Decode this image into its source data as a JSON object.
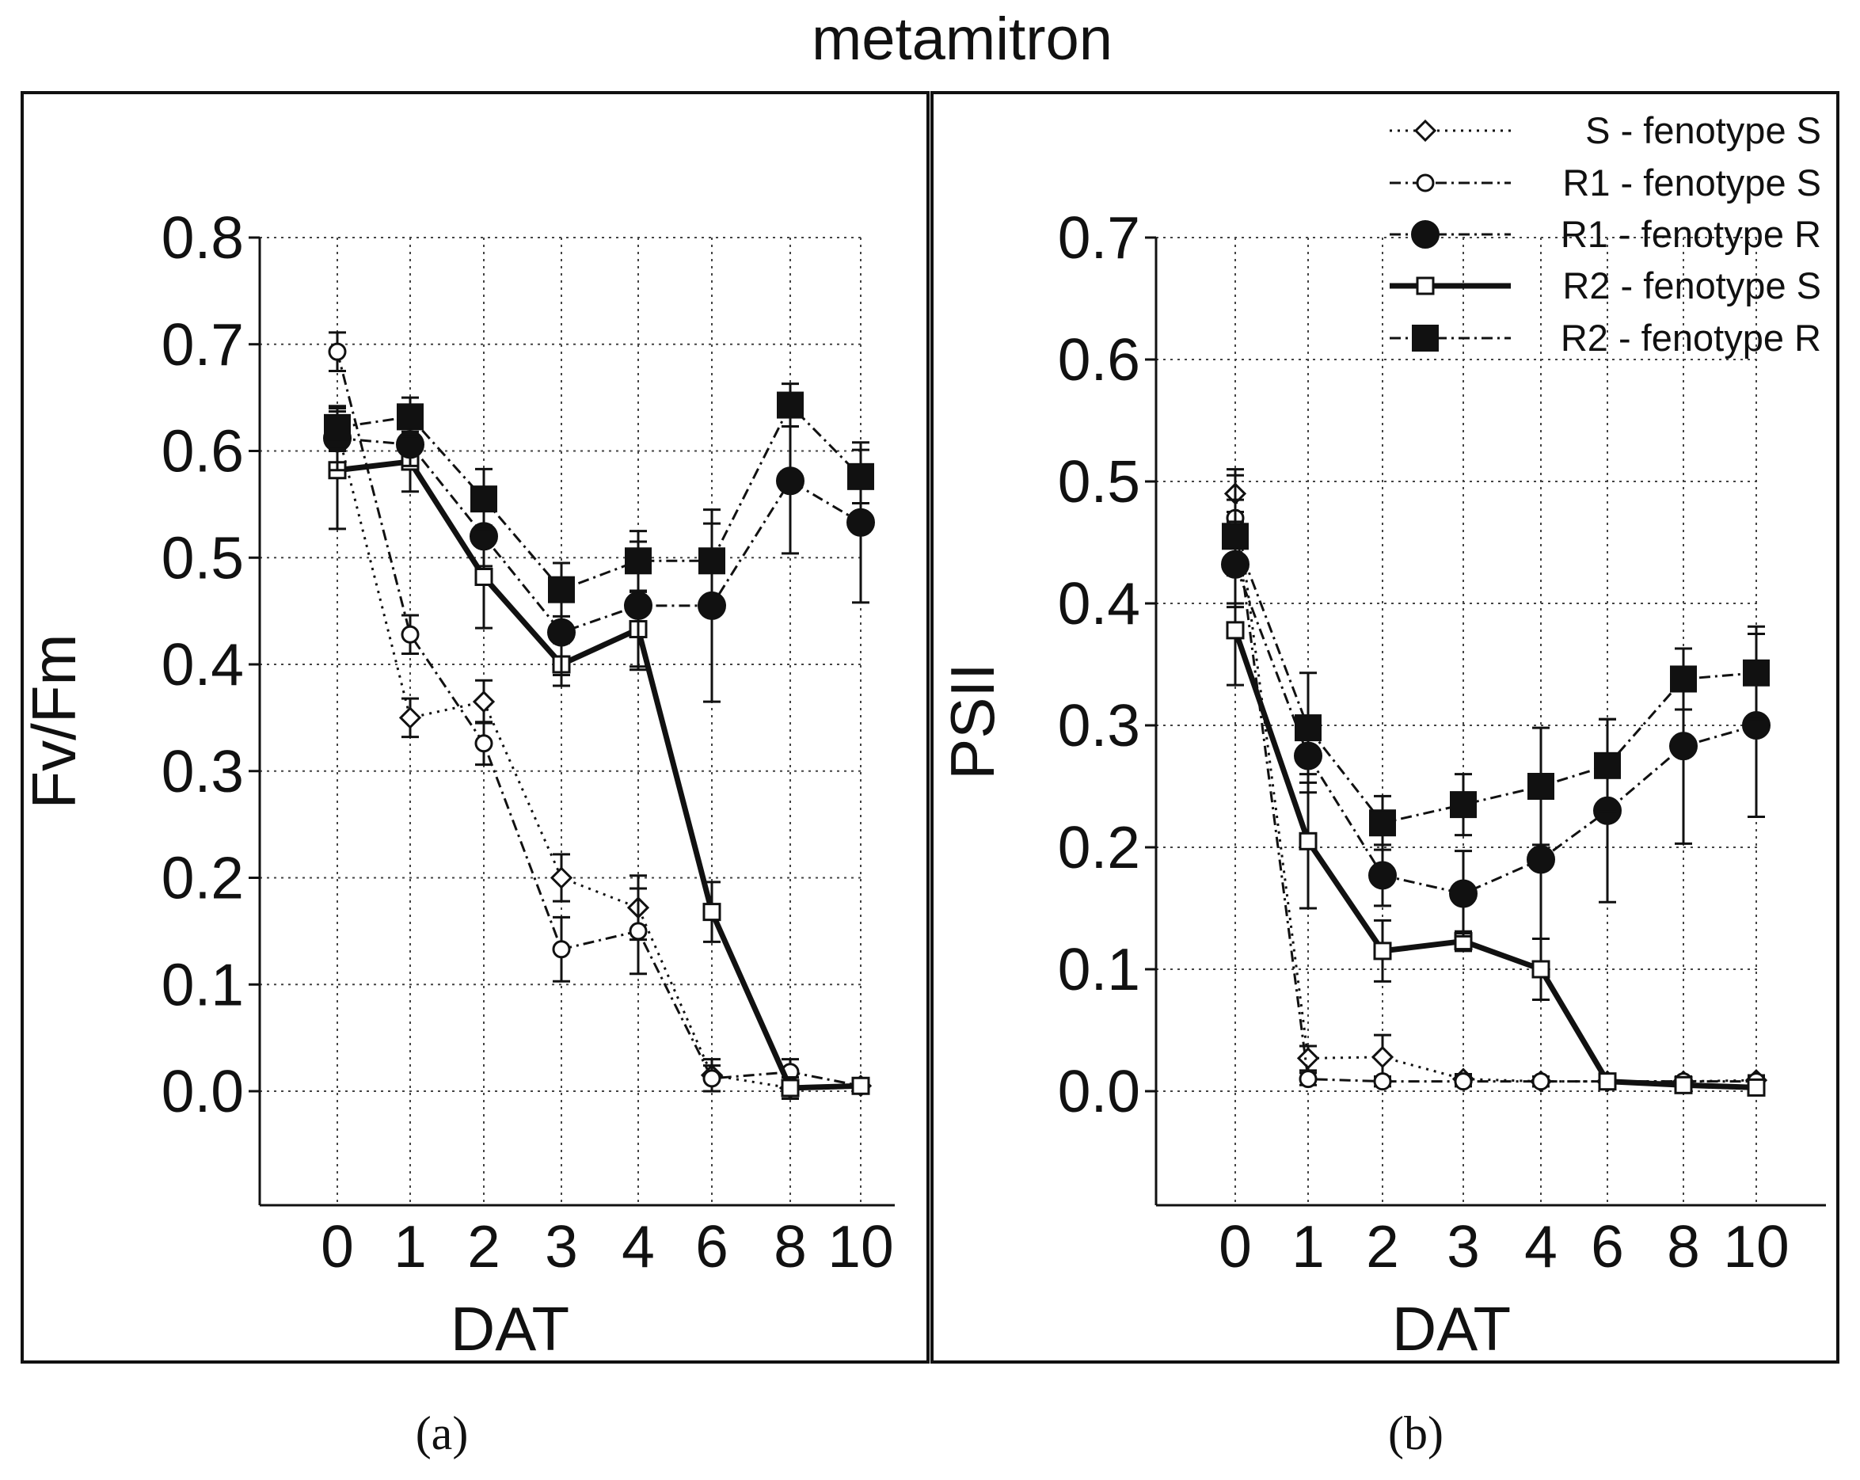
{
  "figure_title": "metamitron",
  "chart_data": [
    {
      "type": "line",
      "panel_caption": "(a)",
      "xlabel": "DAT",
      "ylabel": "Fv/Fm",
      "categories": [
        "0",
        "1",
        "2",
        "3",
        "4",
        "6",
        "8",
        "10"
      ],
      "yticks": [
        "0.0",
        "0.1",
        "0.2",
        "0.3",
        "0.4",
        "0.5",
        "0.6",
        "0.7",
        "0.8"
      ],
      "ylim": [
        -0.1,
        0.8
      ],
      "grid": true,
      "series": [
        {
          "name": "S - fenotype S",
          "marker": "diamond-open",
          "line": "dotted",
          "values": [
            0.62,
            0.35,
            0.365,
            0.2,
            0.172,
            0.015,
            0.003,
            0.005
          ],
          "errors": [
            0.02,
            0.018,
            0.02,
            0.022,
            0.03,
            0.015,
            0.01,
            0.005
          ]
        },
        {
          "name": "R1 - fenotype S",
          "marker": "circle-open",
          "line": "dashdot",
          "values": [
            0.693,
            0.428,
            0.326,
            0.133,
            0.15,
            0.012,
            0.018,
            0.005
          ],
          "errors": [
            0.018,
            0.018,
            0.02,
            0.03,
            0.04,
            0.012,
            0.012,
            0.005
          ]
        },
        {
          "name": "R1 - fenotype R",
          "marker": "circle-filled",
          "line": "dashdot",
          "values": [
            0.612,
            0.606,
            0.52,
            0.43,
            0.455,
            0.455,
            0.572,
            0.533
          ],
          "errors": [
            0.03,
            0.02,
            0.028,
            0.04,
            0.06,
            0.09,
            0.068,
            0.075
          ]
        },
        {
          "name": "R2 - fenotype S",
          "marker": "square-open",
          "line": "solid-thick",
          "values": [
            0.582,
            0.59,
            0.482,
            0.4,
            0.433,
            0.168,
            0.003,
            0.005
          ],
          "errors": [
            0.055,
            0.028,
            0.048,
            0.02,
            0.035,
            0.028,
            0.01,
            0.004
          ]
        },
        {
          "name": "R2 - fenotype R",
          "marker": "square-filled",
          "line": "dashdot",
          "values": [
            0.622,
            0.632,
            0.555,
            0.47,
            0.497,
            0.497,
            0.643,
            0.576
          ],
          "errors": [
            0.02,
            0.018,
            0.028,
            0.025,
            0.028,
            0.035,
            0.02,
            0.025
          ]
        }
      ]
    },
    {
      "type": "line",
      "panel_caption": "(b)",
      "xlabel": "DAT",
      "ylabel": "PSII",
      "categories": [
        "0",
        "1",
        "2",
        "3",
        "4",
        "6",
        "8",
        "10"
      ],
      "yticks": [
        "0.0",
        "0.1",
        "0.2",
        "0.3",
        "0.4",
        "0.5",
        "0.6",
        "0.7"
      ],
      "ylim": [
        -0.09,
        0.7
      ],
      "grid": true,
      "legend_position": "top-right",
      "series": [
        {
          "name": "S - fenotype S",
          "marker": "diamond-open",
          "line": "dotted",
          "values": [
            0.49,
            0.027,
            0.028,
            0.01,
            0.008,
            0.008,
            0.008,
            0.009
          ],
          "errors": [
            0.015,
            0.01,
            0.018,
            0.004,
            0.004,
            0.004,
            0.004,
            0.004
          ]
        },
        {
          "name": "R1 - fenotype S",
          "marker": "circle-open",
          "line": "dashdot",
          "values": [
            0.47,
            0.01,
            0.008,
            0.008,
            0.008,
            0.008,
            0.008,
            0.008
          ],
          "errors": [
            0.015,
            0.005,
            0.004,
            0.004,
            0.004,
            0.004,
            0.004,
            0.004
          ]
        },
        {
          "name": "R1 - fenotype R",
          "marker": "circle-filled",
          "line": "dashdot",
          "values": [
            0.432,
            0.275,
            0.177,
            0.162,
            0.19,
            0.23,
            0.283,
            0.3
          ],
          "errors": [
            0.035,
            0.03,
            0.025,
            0.035,
            0.065,
            0.075,
            0.08,
            0.075
          ]
        },
        {
          "name": "R2 - fenotype S",
          "marker": "square-open",
          "line": "solid-thick",
          "values": [
            0.378,
            0.205,
            0.115,
            0.123,
            0.1,
            0.008,
            0.005,
            0.003
          ],
          "errors": [
            0.045,
            0.055,
            0.025,
            0.008,
            0.025,
            0.004,
            0.004,
            0.004
          ]
        },
        {
          "name": "R2 - fenotype R",
          "marker": "square-filled",
          "line": "dashdot",
          "values": [
            0.455,
            0.298,
            0.22,
            0.235,
            0.25,
            0.267,
            0.338,
            0.343
          ],
          "errors": [
            0.055,
            0.045,
            0.022,
            0.025,
            0.048,
            0.038,
            0.025,
            0.038
          ]
        }
      ]
    }
  ]
}
